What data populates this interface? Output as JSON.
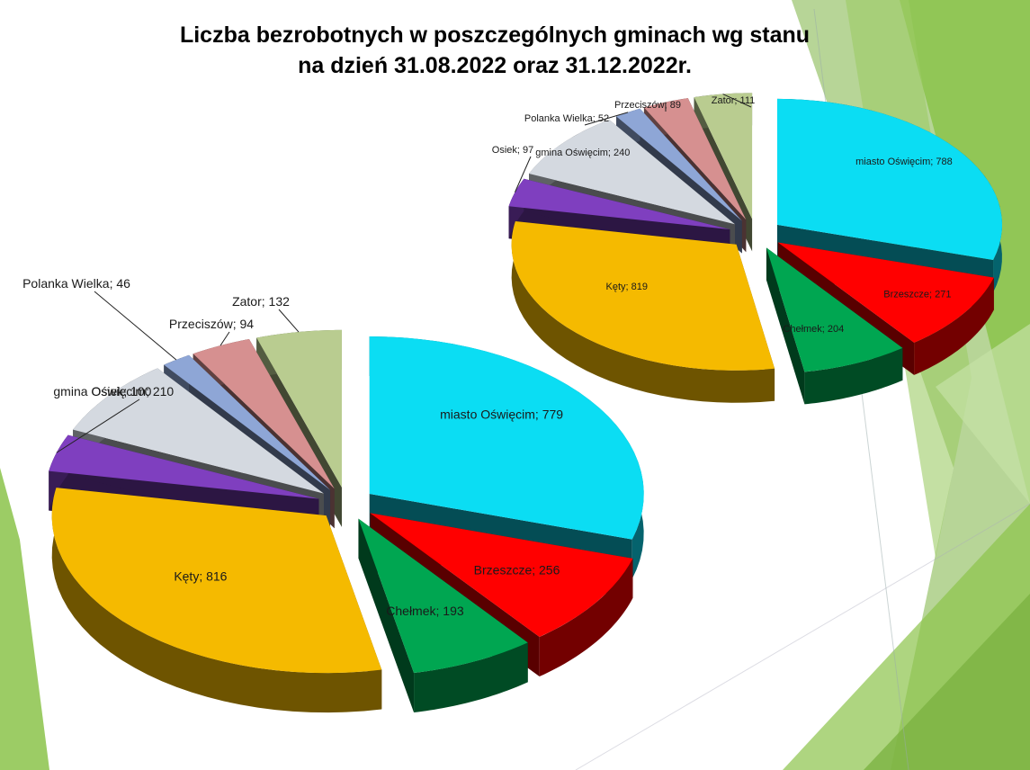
{
  "title": {
    "line1": "Liczba bezrobotnych w poszczególnych gminach wg stanu",
    "line2": "na dzień 31.08.2022 oraz 31.12.2022r."
  },
  "colors": {
    "miasto Oświęcim": "#0BDDF3",
    "Brzeszcze": "#FF0000",
    "Chełmek": "#00A651",
    "Kęty": "#F5BA00",
    "Osiek": "#7F3FBF",
    "gmina  Oświęcim": "#D4D9E0",
    "Polanka Wielka": "#8EA6D6",
    "Przeciszów": "#D69090",
    "Zator": "#B9CC90",
    "background_green": "#8BC34A"
  },
  "chart_data": [
    {
      "type": "pie",
      "subtitle": "31.08.2022",
      "categories": [
        "miasto Oświęcim",
        "Brzeszcze",
        "Chełmek",
        "Kęty",
        "Osiek",
        "gmina  Oświęcim",
        "Polanka Wielka",
        "Przeciszów",
        "Zator"
      ],
      "values": [
        779,
        256,
        193,
        816,
        100,
        210,
        46,
        94,
        132
      ],
      "labels": [
        "miasto Oświęcim; 779",
        "Brzeszcze; 256",
        "Chełmek; 193",
        "Kęty; 816",
        "Osiek; 100",
        "gmina  Oświęcim; 210",
        "Polanka Wielka; 46",
        "Przeciszów; 94",
        "Zator; 132"
      ]
    },
    {
      "type": "pie",
      "subtitle": "31.12.2022",
      "categories": [
        "miasto Oświęcim",
        "Brzeszcze",
        "Chełmek",
        "Kęty",
        "Osiek",
        "gmina  Oświęcim",
        "Polanka Wielka",
        "Przeciszów",
        "Zator"
      ],
      "values": [
        788,
        271,
        204,
        819,
        97,
        240,
        52,
        89,
        111
      ],
      "labels": [
        "miasto Oświęcim; 788",
        "Brzeszcze; 271",
        "Chełmek; 204",
        "Kęty; 819",
        "Osiek; 97",
        "gmina  Oświęcim; 240",
        "Polanka Wielka; 52",
        "Przeciszów; 89",
        "Zator; 111"
      ]
    }
  ]
}
